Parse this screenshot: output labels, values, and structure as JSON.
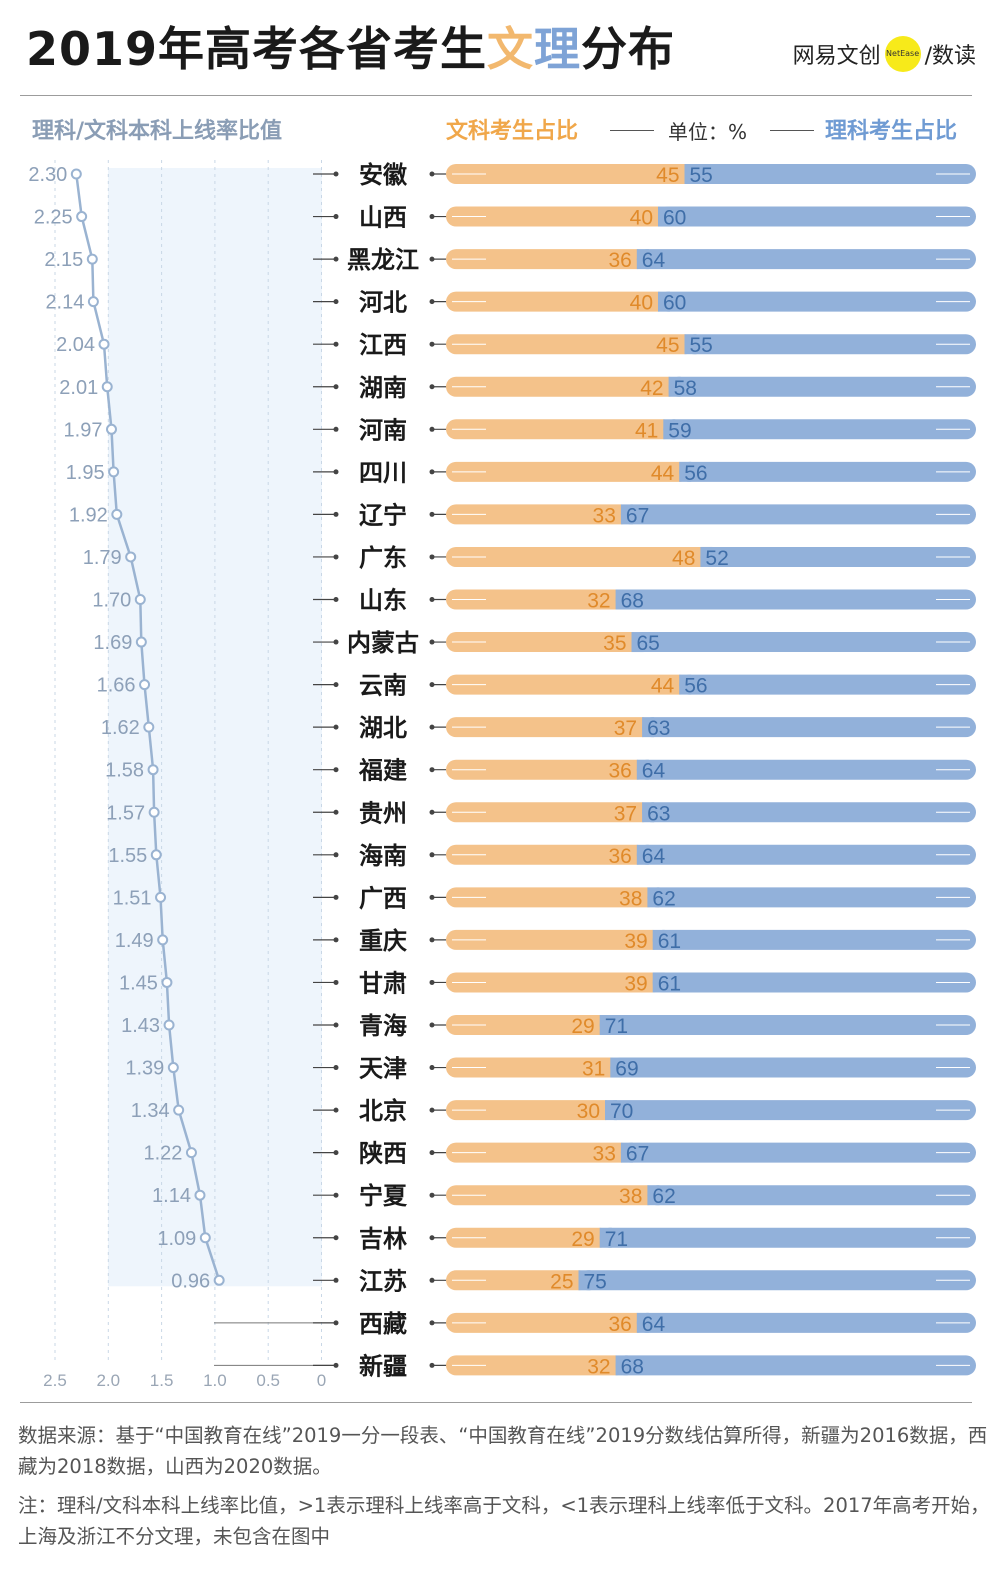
{
  "title": {
    "part1": "2019年高考各省考生",
    "wen": "文",
    "li": "理",
    "part2": "分布"
  },
  "brand": {
    "name": "网易文创",
    "logo_text": "NetEase",
    "sub": "/数读"
  },
  "headers": {
    "left": "理科/文科本科上线率比值",
    "wen": "文科考生占比",
    "unit": "单位：%",
    "li": "理科考生占比"
  },
  "colors": {
    "wen_bar": "#f4c28a",
    "li_bar": "#92b1da",
    "wen_text": "#e08a2a",
    "li_text": "#3f6ea8",
    "line": "#9ab3d1",
    "band": "#eef5fc"
  },
  "chart_data": [
    {
      "type": "line",
      "title": "理科/文科本科上线率比值",
      "orientation": "horizontal",
      "categories": [
        "安徽",
        "山西",
        "黑龙江",
        "河北",
        "江西",
        "湖南",
        "河南",
        "四川",
        "辽宁",
        "广东",
        "山东",
        "内蒙古",
        "云南",
        "湖北",
        "福建",
        "贵州",
        "海南",
        "广西",
        "重庆",
        "甘肃",
        "青海",
        "天津",
        "北京",
        "陕西",
        "宁夏",
        "吉林",
        "江苏",
        "西藏",
        "新疆"
      ],
      "values": [
        2.3,
        2.25,
        2.15,
        2.14,
        2.04,
        2.01,
        1.97,
        1.95,
        1.92,
        1.79,
        1.7,
        1.69,
        1.66,
        1.62,
        1.58,
        1.57,
        1.55,
        1.51,
        1.49,
        1.45,
        1.43,
        1.39,
        1.34,
        1.22,
        1.14,
        1.09,
        0.96,
        null,
        null
      ],
      "value_labels": [
        "2.30",
        "2.25",
        "2.15",
        "2.14",
        "2.04",
        "2.01",
        "1.97",
        "1.95",
        "1.92",
        "1.79",
        "1.70",
        "1.69",
        "1.66",
        "1.62",
        "1.58",
        "1.57",
        "1.55",
        "1.51",
        "1.49",
        "1.45",
        "1.43",
        "1.39",
        "1.34",
        "1.22",
        "1.14",
        "1.09",
        "0.96",
        "",
        ""
      ],
      "xlim": [
        2.5,
        0
      ],
      "xticks": [
        2.5,
        2.0,
        1.5,
        1.0,
        0.5,
        0
      ],
      "xtick_labels": [
        "2.5",
        "2.0",
        "1.5",
        "1.0",
        "0.5",
        "0"
      ],
      "grid": true
    },
    {
      "type": "bar",
      "stacked": true,
      "orientation": "horizontal",
      "title": "文科考生占比 / 理科考生占比",
      "unit": "%",
      "categories": [
        "安徽",
        "山西",
        "黑龙江",
        "河北",
        "江西",
        "湖南",
        "河南",
        "四川",
        "辽宁",
        "广东",
        "山东",
        "内蒙古",
        "云南",
        "湖北",
        "福建",
        "贵州",
        "海南",
        "广西",
        "重庆",
        "甘肃",
        "青海",
        "天津",
        "北京",
        "陕西",
        "宁夏",
        "吉林",
        "江苏",
        "西藏",
        "新疆"
      ],
      "series": [
        {
          "name": "文科考生占比",
          "values": [
            45,
            40,
            36,
            40,
            45,
            42,
            41,
            44,
            33,
            48,
            32,
            35,
            44,
            37,
            36,
            37,
            36,
            38,
            39,
            39,
            29,
            31,
            30,
            33,
            38,
            29,
            25,
            36,
            32
          ]
        },
        {
          "name": "理科考生占比",
          "values": [
            55,
            60,
            64,
            60,
            55,
            58,
            59,
            56,
            67,
            52,
            68,
            65,
            56,
            63,
            64,
            63,
            64,
            62,
            61,
            61,
            71,
            69,
            70,
            67,
            62,
            71,
            75,
            64,
            68
          ]
        }
      ],
      "xlim": [
        0,
        100
      ]
    }
  ],
  "footer": {
    "source": "数据来源：基于“中国教育在线”2019一分一段表、“中国教育在线”2019分数线估算所得，新疆为2016数据，西藏为2018数据，山西为2020数据。",
    "note": "注：理科/文科本科上线率比值，>1表示理科上线率高于文科，<1表示理科上线率低于文科。2017年高考开始，上海及浙江不分文理，未包含在图中"
  }
}
